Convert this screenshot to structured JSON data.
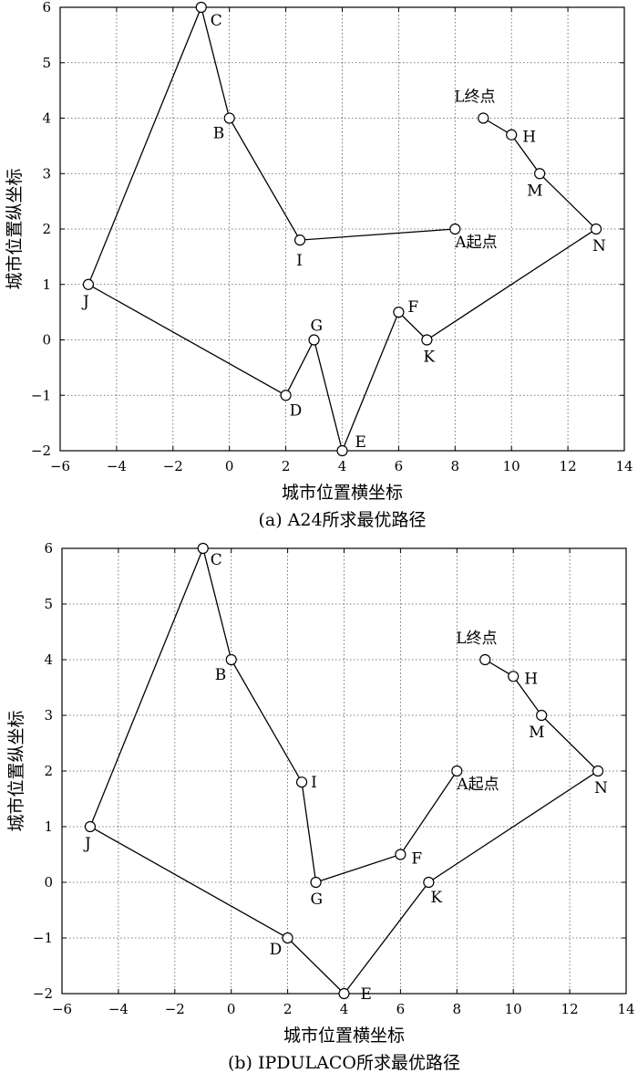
{
  "chart_data": [
    {
      "type": "line",
      "caption": "(a) A24所求最优路径",
      "xlabel": "城市位置横坐标",
      "ylabel": "城市位置纵坐标",
      "xlim": [
        -6,
        14
      ],
      "ylim": [
        -2,
        6
      ],
      "xticks": [
        "−6",
        "−4",
        "−2",
        "0",
        "2",
        "4",
        "6",
        "8",
        "10",
        "12",
        "14"
      ],
      "yticks": [
        "−2",
        "−1",
        "0",
        "1",
        "2",
        "3",
        "4",
        "5",
        "6"
      ],
      "grid": true,
      "cities": [
        {
          "label": "A起点",
          "x": 8,
          "y": 2
        },
        {
          "label": "B",
          "x": 0,
          "y": 4
        },
        {
          "label": "C",
          "x": -1,
          "y": 6
        },
        {
          "label": "D",
          "x": 2,
          "y": -1
        },
        {
          "label": "E",
          "x": 4,
          "y": -2
        },
        {
          "label": "F",
          "x": 6,
          "y": 0.5
        },
        {
          "label": "G",
          "x": 3,
          "y": 0
        },
        {
          "label": "H",
          "x": 10,
          "y": 3.7
        },
        {
          "label": "I",
          "x": 2.5,
          "y": 1.8
        },
        {
          "label": "J",
          "x": -5,
          "y": 1
        },
        {
          "label": "K",
          "x": 7,
          "y": 0
        },
        {
          "label": "L终点",
          "x": 9,
          "y": 4
        },
        {
          "label": "M",
          "x": 11,
          "y": 3
        },
        {
          "label": "N",
          "x": 13,
          "y": 2
        }
      ],
      "route": [
        "A起点",
        "I",
        "B",
        "C",
        "J",
        "D",
        "G",
        "E",
        "F",
        "K",
        "N",
        "M",
        "H",
        "L终点"
      ]
    },
    {
      "type": "line",
      "caption": "(b) IPDULACO所求最优路径",
      "xlabel": "城市位置横坐标",
      "ylabel": "城市位置纵坐标",
      "xlim": [
        -6,
        14
      ],
      "ylim": [
        -2,
        6
      ],
      "xticks": [
        "−6",
        "−4",
        "−2",
        "0",
        "2",
        "4",
        "6",
        "8",
        "10",
        "12",
        "14"
      ],
      "yticks": [
        "−2",
        "−1",
        "0",
        "1",
        "2",
        "3",
        "4",
        "5",
        "6"
      ],
      "grid": true,
      "cities": [
        {
          "label": "A起点",
          "x": 8,
          "y": 2
        },
        {
          "label": "B",
          "x": 0,
          "y": 4
        },
        {
          "label": "C",
          "x": -1,
          "y": 6
        },
        {
          "label": "D",
          "x": 2,
          "y": -1
        },
        {
          "label": "E",
          "x": 4,
          "y": -2
        },
        {
          "label": "F",
          "x": 6,
          "y": 0.5
        },
        {
          "label": "G",
          "x": 3,
          "y": 0
        },
        {
          "label": "H",
          "x": 10,
          "y": 3.7
        },
        {
          "label": "I",
          "x": 2.5,
          "y": 1.8
        },
        {
          "label": "J",
          "x": -5,
          "y": 1
        },
        {
          "label": "K",
          "x": 7,
          "y": 0
        },
        {
          "label": "L终点",
          "x": 9,
          "y": 4
        },
        {
          "label": "M",
          "x": 11,
          "y": 3
        },
        {
          "label": "N",
          "x": 13,
          "y": 2
        }
      ],
      "route": [
        "A起点",
        "F",
        "G",
        "I",
        "B",
        "C",
        "J",
        "D",
        "E",
        "K",
        "N",
        "M",
        "H",
        "L终点"
      ]
    }
  ]
}
